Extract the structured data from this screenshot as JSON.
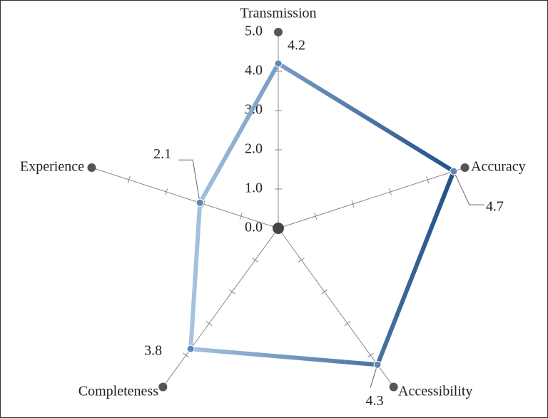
{
  "chart_data": {
    "type": "radar",
    "categories": [
      "Transmission",
      "Accuracy",
      "Accessibility",
      "Completeness",
      "Experience"
    ],
    "values": [
      4.2,
      4.7,
      4.3,
      3.8,
      2.1
    ],
    "ylim": [
      0,
      5
    ],
    "yticks": [
      {
        "value": 0,
        "label": "0.0"
      },
      {
        "value": 1,
        "label": "1.0"
      },
      {
        "value": 2,
        "label": "2.0"
      },
      {
        "value": 3,
        "label": "3.0"
      },
      {
        "value": 4,
        "label": "4.0"
      },
      {
        "value": 5,
        "label": "5.0"
      }
    ],
    "gradient": [
      "#b3cfea",
      "#1c4c84"
    ]
  }
}
